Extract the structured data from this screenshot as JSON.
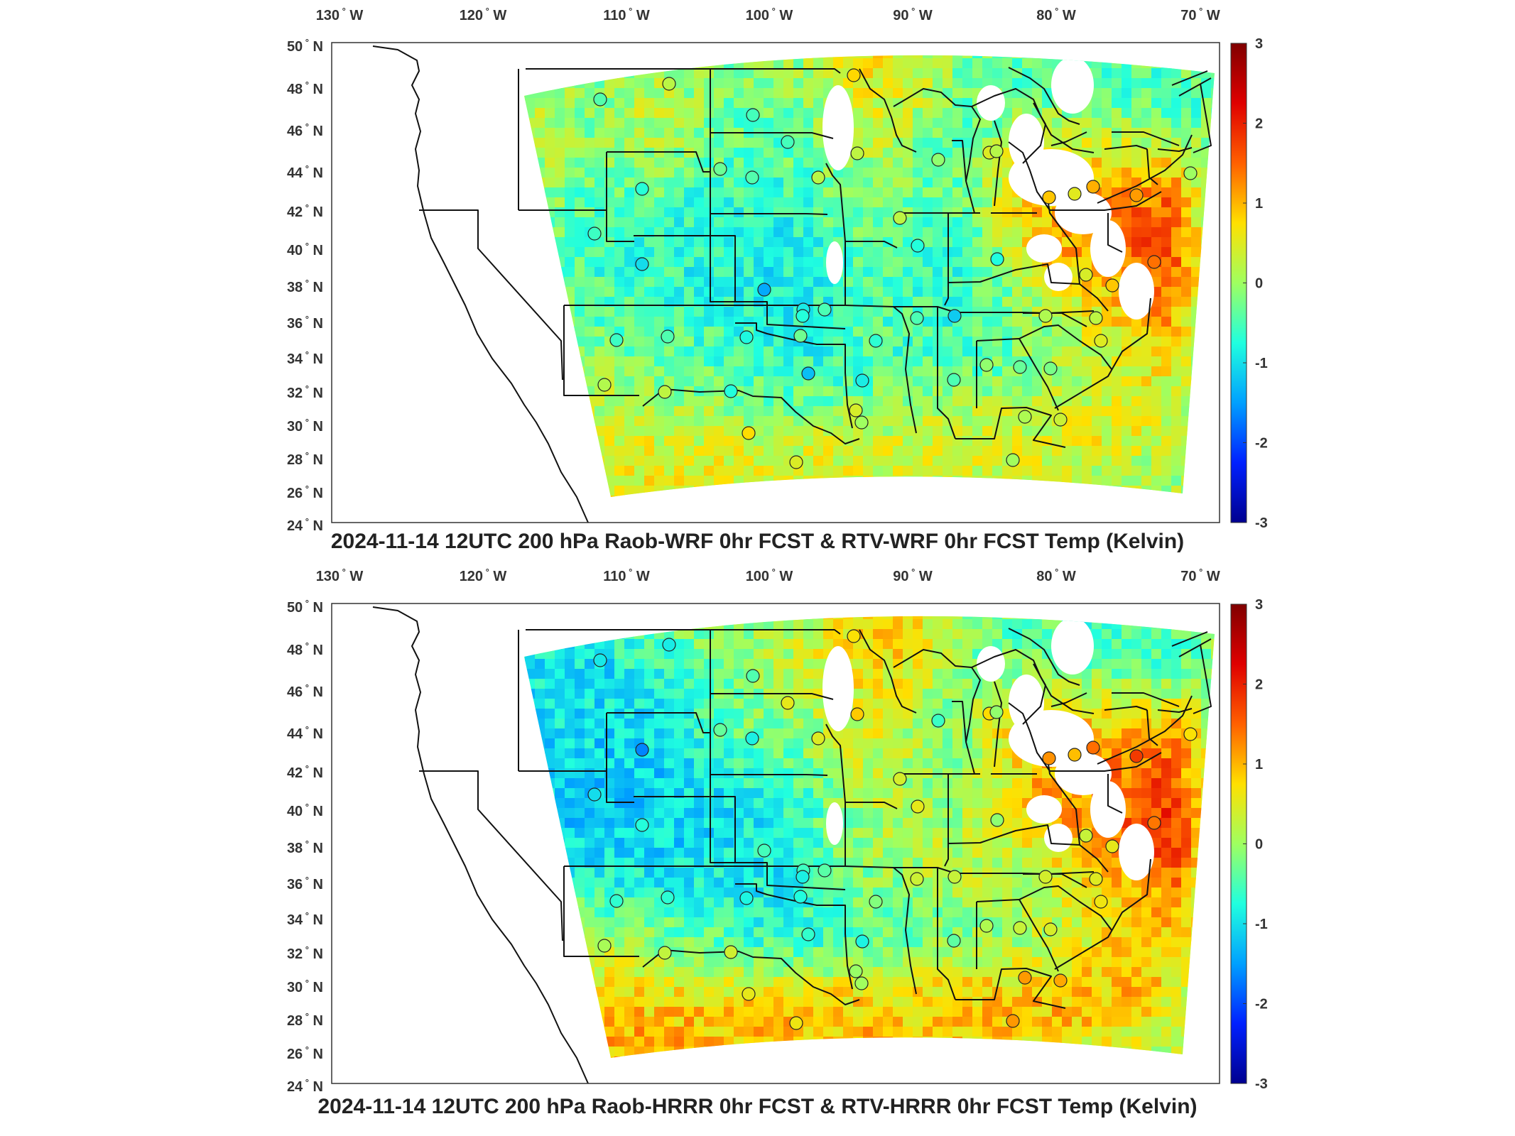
{
  "figure": {
    "lon_ticks": [
      "130",
      "120",
      "110",
      "100",
      "90",
      "80",
      "70"
    ],
    "lon_suffix": "W",
    "lat_ticks": [
      "50",
      "48",
      "46",
      "44",
      "42",
      "40",
      "38",
      "36",
      "34",
      "32",
      "30",
      "28",
      "26",
      "24"
    ],
    "lat_suffix": "N",
    "degree_symbol": "°",
    "colorbar_ticks": [
      "3",
      "2",
      "1",
      "0",
      "-1",
      "-2",
      "-3"
    ],
    "colormap": [
      "#00008f",
      "#0020ff",
      "#00a0ff",
      "#20ffdf",
      "#9fff60",
      "#ffe000",
      "#ff6000",
      "#df0000",
      "#800000"
    ]
  },
  "panels": [
    {
      "title": "2024-11-14 12UTC 200 hPa Raob-WRF 0hr FCST & RTV-WRF 0hr FCST Temp (Kelvin)",
      "field_style": "wrf"
    },
    {
      "title": "2024-11-14 12UTC 200 hPa Raob-HRRR 0hr FCST & RTV-HRRR 0hr FCST Temp (Kelvin)",
      "field_style": "hrrr"
    }
  ]
}
